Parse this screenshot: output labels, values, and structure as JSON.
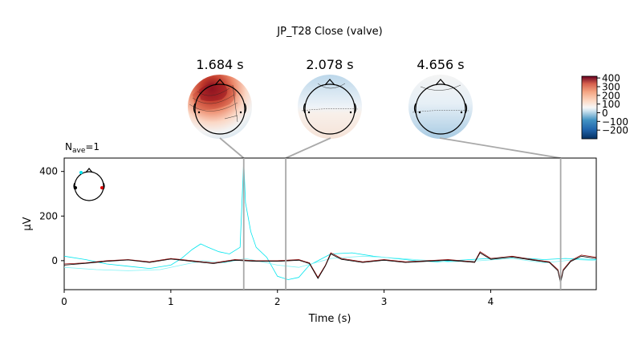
{
  "chart_data": {
    "type": "line",
    "title": "JP_T28 Close (valve)",
    "nave_label": "N",
    "nave_sub": "ave",
    "nave_value": "=1",
    "xlabel": "Time (s)",
    "ylabel": "µV",
    "xlim": [
      0,
      4.99
    ],
    "ylim": [
      -130,
      460
    ],
    "xticks": [
      0,
      1,
      2,
      3,
      4
    ],
    "xtick_labels": [
      "0",
      "1",
      "2",
      "3",
      "4"
    ],
    "yticks": [
      0,
      200,
      400
    ],
    "ytick_labels": [
      "0",
      "200",
      "400"
    ],
    "topomap_times": [
      1.684,
      2.078,
      4.656
    ],
    "topomap_labels": [
      "1.684 s",
      "2.078 s",
      "4.656 s"
    ],
    "colorbar": {
      "min": -300,
      "max": 420,
      "ticks": [
        400,
        300,
        200,
        100,
        0,
        -100,
        -200
      ],
      "tick_labels": [
        "400",
        "300",
        "200",
        "100",
        "0",
        "−100",
        "−200"
      ]
    },
    "series": [
      {
        "name": "cyan channel",
        "color": "#00e5ee",
        "x": [
          0,
          0.2,
          0.4,
          0.6,
          0.8,
          1.0,
          1.1,
          1.2,
          1.28,
          1.35,
          1.45,
          1.55,
          1.65,
          1.684,
          1.7,
          1.75,
          1.8,
          1.9,
          2.0,
          2.1,
          2.2,
          2.3,
          2.4,
          2.5,
          2.7,
          2.9,
          3.1,
          3.3,
          3.5,
          3.8,
          4.0,
          4.2,
          4.5,
          4.7,
          4.99
        ],
        "values": [
          20,
          5,
          -15,
          -25,
          -35,
          -20,
          10,
          50,
          75,
          60,
          40,
          30,
          60,
          450,
          260,
          130,
          60,
          15,
          -70,
          -85,
          -75,
          -20,
          5,
          30,
          35,
          20,
          10,
          0,
          -5,
          5,
          10,
          15,
          5,
          10,
          5
        ]
      },
      {
        "name": "cyan channel 2",
        "color": "#7ff3f6",
        "x": [
          0,
          0.3,
          0.6,
          0.9,
          1.1,
          1.3,
          1.5,
          1.7,
          2.0,
          2.2,
          2.5,
          2.8,
          3.0,
          3.3,
          3.6,
          3.9,
          4.2,
          4.5,
          4.8,
          4.99
        ],
        "values": [
          -30,
          -40,
          -45,
          -40,
          -20,
          0,
          -10,
          10,
          -20,
          -30,
          10,
          20,
          15,
          5,
          -5,
          0,
          10,
          -10,
          5,
          0
        ]
      },
      {
        "name": "red channel",
        "color": "#8b0000",
        "x": [
          0,
          0.2,
          0.4,
          0.6,
          0.8,
          1.0,
          1.2,
          1.4,
          1.6,
          1.8,
          2.0,
          2.2,
          2.3,
          2.38,
          2.45,
          2.5,
          2.6,
          2.8,
          3.0,
          3.2,
          3.4,
          3.6,
          3.85,
          3.9,
          4.0,
          4.2,
          4.4,
          4.55,
          4.63,
          4.656,
          4.68,
          4.75,
          4.85,
          4.99
        ],
        "values": [
          -15,
          -10,
          0,
          5,
          -5,
          10,
          0,
          -10,
          5,
          0,
          0,
          5,
          -10,
          -75,
          -20,
          35,
          10,
          -5,
          5,
          -5,
          0,
          5,
          -5,
          40,
          10,
          20,
          5,
          -5,
          -40,
          -95,
          -40,
          0,
          25,
          15
        ]
      },
      {
        "name": "black channel",
        "color": "#000000",
        "x": [
          0,
          0.2,
          0.4,
          0.6,
          0.8,
          1.0,
          1.2,
          1.4,
          1.6,
          1.8,
          2.0,
          2.2,
          2.3,
          2.38,
          2.45,
          2.5,
          2.6,
          2.8,
          3.0,
          3.2,
          3.4,
          3.6,
          3.85,
          3.9,
          4.0,
          4.2,
          4.4,
          4.55,
          4.63,
          4.656,
          4.68,
          4.75,
          4.85,
          4.99
        ],
        "values": [
          -20,
          -12,
          -3,
          3,
          -8,
          7,
          -3,
          -13,
          2,
          -3,
          -3,
          2,
          -13,
          -80,
          -23,
          30,
          6,
          -8,
          2,
          -8,
          -3,
          2,
          -8,
          35,
          6,
          16,
          2,
          -8,
          -45,
          -100,
          -45,
          -4,
          20,
          10
        ]
      }
    ],
    "sensor_legend": {
      "cyan": "#00e5ee",
      "red": "#dd0000",
      "black": "#000000"
    }
  }
}
